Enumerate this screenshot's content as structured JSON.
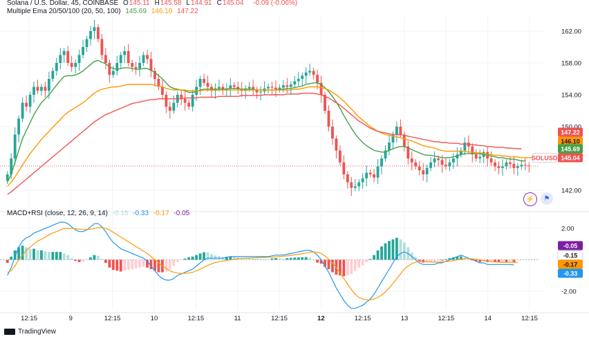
{
  "header": {
    "symbol_line": "Solana / U.S. Dollar, 45, COINBASE",
    "ohlc": [
      {
        "key": "O",
        "value": "145.11"
      },
      {
        "key": "H",
        "value": "145.58"
      },
      {
        "key": "L",
        "value": "144.91"
      },
      {
        "key": "C",
        "value": "145.04"
      }
    ],
    "change": "-0.09 (-0.06%)",
    "ema_line": "Multiple Ema 20/50/100 (20, 50, 100)",
    "ema_values": [
      "145.69",
      "146.10",
      "147.22"
    ],
    "macd_line": "MACD+RSI (close, 12, 26, 9, 14)",
    "macd_values": [
      "-0.15",
      "-0.33",
      "-0.17",
      "-0.05"
    ]
  },
  "colors": {
    "up": "#26a69a",
    "down": "#ef5350",
    "ema20": "#43a047",
    "ema50": "#ff9800",
    "ema100": "#ef5350",
    "macd": "#2196f3",
    "signal": "#ff9800",
    "rsi_tag": "#7b1fa2",
    "grid": "#f0f3fa",
    "text": "#131722"
  },
  "footer": {
    "brand": "TradingView"
  },
  "icons": [
    "alert-icon",
    "flag-icon"
  ],
  "chart_data": [
    {
      "type": "candlestick",
      "symbol": "SOLUSD",
      "y_axis": {
        "ticks": [
          "162.00",
          "158.00",
          "154.00",
          "150.00",
          "142.00"
        ],
        "range": [
          140,
          164
        ]
      },
      "x_axis": {
        "ticks": [
          "12:15",
          "9",
          "12:15",
          "10",
          "12:15",
          "11",
          "12:15",
          "12",
          "12:15",
          "13",
          "12:15",
          "14",
          "12:15"
        ]
      },
      "price_tags": [
        {
          "label": "147.22",
          "value": 147.22,
          "series": "ema100"
        },
        {
          "label": "146.10",
          "value": 146.1,
          "series": "ema50"
        },
        {
          "label": "145.69",
          "value": 145.69,
          "series": "ema20"
        },
        {
          "label": "SOLUSD",
          "value": 145.04,
          "series": "symbol"
        },
        {
          "label": "145.04",
          "value": 145.04,
          "series": "close"
        }
      ],
      "close_series": [
        144,
        146,
        149,
        151,
        153,
        152.5,
        154,
        155,
        154.5,
        155,
        154.5,
        156,
        157,
        158,
        159,
        159.5,
        158,
        157.5,
        158,
        159,
        160,
        161,
        162,
        162.5,
        161,
        159,
        158,
        156.5,
        157,
        158,
        159,
        159.5,
        158,
        157.5,
        157.3,
        158,
        159,
        158.5,
        157,
        156,
        155,
        154,
        152.5,
        152,
        153,
        154,
        153.5,
        153,
        152.5,
        154,
        155,
        156,
        155.5,
        155,
        154.5,
        154.8,
        155,
        154.6,
        154.8,
        155.2,
        155,
        154.7,
        154.5,
        154.8,
        155,
        154.6,
        154.3,
        154.4,
        154.8,
        155,
        154.9,
        154.7,
        154.9,
        155.2,
        155,
        155.3,
        155.7,
        156,
        156.4,
        156.8,
        157,
        156.5,
        155.5,
        154,
        152,
        150,
        148.5,
        147,
        145.5,
        144,
        143,
        142.3,
        142.5,
        143,
        143.5,
        144.2,
        144,
        143.6,
        145,
        146,
        147,
        148,
        149,
        150,
        149,
        147.5,
        146,
        145.5,
        145,
        144.5,
        144,
        144.8,
        145.5,
        146,
        145.8,
        145.2,
        145,
        145.5,
        146,
        146.5,
        147,
        148,
        147.5,
        146.5,
        146,
        146.2,
        146.8,
        146,
        145.5,
        145,
        144.8,
        145,
        145.5,
        145.3,
        144.8,
        145,
        145.2,
        145.1,
        145.04
      ],
      "ema20": [
        143,
        144,
        145.5,
        147,
        148.5,
        149.5,
        150.5,
        151.5,
        152.3,
        153,
        153.5,
        154,
        154.6,
        155.2,
        155.8,
        156.3,
        156.4,
        156.4,
        156.5,
        156.7,
        157,
        157.4,
        157.8,
        158.2,
        158.3,
        158.1,
        157.9,
        157.5,
        157.3,
        157.2,
        157.3,
        157.4,
        157.4,
        157.3,
        157.2,
        157.2,
        157.3,
        157.3,
        157.1,
        156.8,
        156.4,
        156,
        155.5,
        155,
        154.8,
        154.7,
        154.6,
        154.5,
        154.3,
        154.3,
        154.4,
        154.6,
        154.7,
        154.7,
        154.7,
        154.7,
        154.7,
        154.7,
        154.7,
        154.8,
        154.8,
        154.8,
        154.7,
        154.7,
        154.7,
        154.7,
        154.6,
        154.6,
        154.6,
        154.6,
        154.6,
        154.6,
        154.7,
        154.7,
        154.8,
        154.8,
        154.9,
        155,
        155.1,
        155.3,
        155.4,
        155.5,
        155.5,
        155.3,
        154.9,
        154.4,
        153.8,
        153.1,
        152.3,
        151.4,
        150.6,
        149.8,
        149.1,
        148.5,
        148,
        147.6,
        147.3,
        147,
        146.9,
        146.8,
        146.8,
        147,
        147.2,
        147.4,
        147.5,
        147.5,
        147.3,
        147.1,
        146.9,
        146.7,
        146.5,
        146.4,
        146.4,
        146.3,
        146.2,
        146.1,
        146.1,
        146.1,
        146.2,
        146.3,
        146.5,
        146.6,
        146.6,
        146.6,
        146.6,
        146.6,
        146.5,
        146.4,
        146.3,
        146.2,
        146.1,
        146.1,
        146,
        145.9,
        145.9,
        145.8,
        145.7,
        145.69
      ],
      "ema50": [
        142.5,
        143,
        143.7,
        144.4,
        145.2,
        145.9,
        146.6,
        147.2,
        147.8,
        148.4,
        148.9,
        149.4,
        149.9,
        150.4,
        150.9,
        151.4,
        151.8,
        152.1,
        152.4,
        152.7,
        153,
        153.4,
        153.8,
        154.2,
        154.5,
        154.7,
        154.8,
        154.9,
        155,
        155,
        155.1,
        155.2,
        155.3,
        155.3,
        155.3,
        155.3,
        155.3,
        155.3,
        155.3,
        155.2,
        155.1,
        155,
        154.8,
        154.7,
        154.6,
        154.6,
        154.6,
        154.6,
        154.5,
        154.5,
        154.5,
        154.5,
        154.6,
        154.6,
        154.6,
        154.6,
        154.6,
        154.6,
        154.6,
        154.6,
        154.6,
        154.6,
        154.6,
        154.6,
        154.6,
        154.6,
        154.6,
        154.6,
        154.6,
        154.6,
        154.6,
        154.6,
        154.6,
        154.6,
        154.6,
        154.6,
        154.7,
        154.7,
        154.8,
        154.9,
        155,
        155,
        155,
        154.9,
        154.8,
        154.6,
        154.3,
        154,
        153.6,
        153.2,
        152.7,
        152.2,
        151.7,
        151.2,
        150.8,
        150.4,
        150,
        149.7,
        149.4,
        149.2,
        149,
        148.9,
        148.8,
        148.7,
        148.6,
        148.5,
        148.3,
        148.2,
        148,
        147.8,
        147.6,
        147.5,
        147.4,
        147.3,
        147.1,
        147,
        146.9,
        146.9,
        146.9,
        146.9,
        146.9,
        146.9,
        146.8,
        146.8,
        146.7,
        146.7,
        146.6,
        146.5,
        146.5,
        146.4,
        146.4,
        146.3,
        146.3,
        146.2,
        146.2,
        146.2,
        146.1,
        146.1,
        146.1,
        146.1
      ],
      "ema100": [
        141.5,
        141.8,
        142.2,
        142.6,
        143,
        143.4,
        143.8,
        144.2,
        144.6,
        145,
        145.4,
        145.8,
        146.2,
        146.6,
        147,
        147.4,
        147.8,
        148.2,
        148.6,
        149,
        149.4,
        149.8,
        150.2,
        150.6,
        150.9,
        151.2,
        151.5,
        151.7,
        151.9,
        152.1,
        152.3,
        152.5,
        152.7,
        152.9,
        153,
        153.1,
        153.2,
        153.3,
        153.4,
        153.4,
        153.5,
        153.5,
        153.5,
        153.5,
        153.5,
        153.5,
        153.5,
        153.6,
        153.6,
        153.6,
        153.6,
        153.7,
        153.7,
        153.7,
        153.7,
        153.7,
        153.8,
        153.8,
        153.8,
        153.8,
        153.8,
        153.8,
        153.9,
        153.9,
        153.9,
        153.9,
        153.9,
        153.9,
        154,
        154,
        154,
        154,
        154,
        154,
        154.1,
        154.1,
        154.1,
        154.1,
        154.2,
        154.2,
        154.2,
        154.2,
        154.1,
        154,
        153.8,
        153.6,
        153.3,
        153,
        152.7,
        152.3,
        151.9,
        151.5,
        151.1,
        150.7,
        150.4,
        150.1,
        149.8,
        149.6,
        149.4,
        149.3,
        149.2,
        149.1,
        149,
        149,
        149,
        148.9,
        148.8,
        148.7,
        148.6,
        148.5,
        148.4,
        148.3,
        148.2,
        148.1,
        148.1,
        148,
        148,
        147.9,
        147.9,
        147.9,
        147.8,
        147.8,
        147.8,
        147.7,
        147.7,
        147.6,
        147.6,
        147.5,
        147.5,
        147.4,
        147.4,
        147.4,
        147.3,
        147.3,
        147.25,
        147.22,
        147.22
      ]
    },
    {
      "type": "macd",
      "y_axis": {
        "ticks": [
          "2.00",
          "-2.00"
        ],
        "range": [
          -3.2,
          2.8
        ]
      },
      "value_tags": [
        {
          "label": "-0.05",
          "value": -0.05,
          "series": "rsi"
        },
        {
          "label": "-0.15",
          "value": -0.15,
          "series": "histogram"
        },
        {
          "label": "-0.17",
          "value": -0.17,
          "series": "signal"
        },
        {
          "label": "-0.33",
          "value": -0.33,
          "series": "macd"
        }
      ],
      "macd": [
        -1,
        -0.5,
        0.2,
        0.8,
        1.2,
        1.4,
        1.5,
        1.7,
        1.8,
        1.9,
        2,
        2.1,
        2.2,
        2.3,
        2.4,
        2.4,
        2.3,
        2.1,
        1.9,
        1.8,
        1.8,
        1.9,
        2.1,
        2.3,
        2.3,
        2.1,
        1.8,
        1.4,
        1.1,
        0.9,
        0.7,
        0.6,
        0.5,
        0.4,
        0.3,
        0.2,
        0.1,
        -0.1,
        -0.4,
        -0.7,
        -1,
        -1.2,
        -1.3,
        -1.3,
        -1.2,
        -1,
        -0.9,
        -0.8,
        -0.7,
        -0.6,
        -0.4,
        -0.2,
        0,
        0.1,
        0.1,
        0.1,
        0.1,
        0.1,
        0.15,
        0.2,
        0.2,
        0.2,
        0.2,
        0.2,
        0.2,
        0.2,
        0.2,
        0.2,
        0.2,
        0.2,
        0.25,
        0.3,
        0.3,
        0.3,
        0.35,
        0.4,
        0.45,
        0.5,
        0.55,
        0.6,
        0.6,
        0.5,
        0.3,
        0,
        -0.4,
        -0.8,
        -1.3,
        -1.8,
        -2.2,
        -2.6,
        -2.9,
        -3.1,
        -3.1,
        -3,
        -2.9,
        -2.7,
        -2.5,
        -2.2,
        -1.8,
        -1.4,
        -1,
        -0.6,
        -0.2,
        0.2,
        0.4,
        0.5,
        0.4,
        0.2,
        0,
        -0.2,
        -0.3,
        -0.3,
        -0.3,
        -0.3,
        -0.2,
        -0.2,
        -0.1,
        0,
        0.1,
        0.2,
        0.3,
        0.2,
        0.1,
        0,
        -0.1,
        -0.2,
        -0.2,
        -0.3,
        -0.3,
        -0.3,
        -0.3,
        -0.3,
        -0.3,
        -0.3,
        -0.33
      ],
      "signal": [
        -0.8,
        -0.7,
        -0.4,
        0,
        0.3,
        0.6,
        0.8,
        1,
        1.2,
        1.3,
        1.45,
        1.6,
        1.7,
        1.8,
        1.9,
        2,
        2,
        2,
        1.98,
        1.95,
        1.93,
        1.92,
        1.95,
        2,
        2.05,
        2.05,
        2,
        1.9,
        1.75,
        1.6,
        1.45,
        1.3,
        1.15,
        1,
        0.85,
        0.7,
        0.55,
        0.4,
        0.2,
        0,
        -0.2,
        -0.4,
        -0.55,
        -0.7,
        -0.8,
        -0.85,
        -0.87,
        -0.87,
        -0.85,
        -0.8,
        -0.7,
        -0.6,
        -0.48,
        -0.36,
        -0.26,
        -0.18,
        -0.12,
        -0.08,
        -0.04,
        0,
        0.03,
        0.06,
        0.08,
        0.1,
        0.11,
        0.12,
        0.13,
        0.14,
        0.15,
        0.16,
        0.17,
        0.19,
        0.21,
        0.23,
        0.25,
        0.28,
        0.31,
        0.35,
        0.39,
        0.43,
        0.47,
        0.5,
        0.48,
        0.4,
        0.25,
        0.05,
        -0.2,
        -0.5,
        -0.85,
        -1.2,
        -1.55,
        -1.9,
        -2.2,
        -2.4,
        -2.5,
        -2.55,
        -2.55,
        -2.5,
        -2.4,
        -2.25,
        -2.05,
        -1.8,
        -1.5,
        -1.2,
        -0.9,
        -0.6,
        -0.4,
        -0.25,
        -0.15,
        -0.12,
        -0.12,
        -0.13,
        -0.14,
        -0.15,
        -0.15,
        -0.14,
        -0.12,
        -0.1,
        -0.06,
        0,
        0.05,
        0.08,
        0.08,
        0.06,
        0.03,
        0,
        -0.05,
        -0.09,
        -0.12,
        -0.14,
        -0.15,
        -0.16,
        -0.16,
        -0.17,
        -0.17,
        -0.17
      ],
      "histogram": [
        -0.2,
        0.2,
        0.6,
        0.8,
        0.9,
        0.8,
        0.7,
        0.7,
        0.6,
        0.6,
        0.55,
        0.5,
        0.5,
        0.5,
        0.5,
        0.4,
        0.3,
        0.1,
        -0.08,
        -0.15,
        -0.13,
        -0.02,
        0.15,
        0.3,
        0.25,
        0.05,
        -0.2,
        -0.5,
        -0.65,
        -0.7,
        -0.75,
        -0.7,
        -0.65,
        -0.6,
        -0.55,
        -0.5,
        -0.45,
        -0.5,
        -0.6,
        -0.7,
        -0.8,
        -0.8,
        -0.75,
        -0.6,
        -0.4,
        -0.15,
        -0.03,
        0.07,
        0.15,
        0.2,
        0.3,
        0.4,
        0.48,
        0.46,
        0.36,
        0.28,
        0.22,
        0.18,
        0.19,
        0.2,
        0.17,
        0.14,
        0.12,
        0.1,
        0.09,
        0.08,
        0.07,
        0.06,
        0.05,
        0.04,
        0.08,
        0.11,
        0.09,
        0.07,
        0.1,
        0.12,
        0.14,
        0.15,
        0.16,
        0.17,
        0.13,
        0,
        -0.18,
        -0.25,
        -0.45,
        -0.6,
        -0.8,
        -0.95,
        -1,
        -1.05,
        -1,
        -0.9,
        -0.7,
        -0.5,
        -0.35,
        -0.15,
        0.05,
        0.3,
        0.6,
        0.85,
        1.05,
        1.2,
        1.3,
        1.4,
        1.3,
        1.1,
        0.8,
        0.45,
        0.15,
        -0.08,
        -0.18,
        -0.17,
        -0.16,
        -0.15,
        -0.05,
        -0.05,
        0.04,
        0.1,
        0.16,
        0.2,
        0.22,
        0.12,
        0.04,
        -0.03,
        -0.1,
        -0.15,
        -0.11,
        -0.15,
        -0.14,
        -0.14,
        -0.14,
        -0.13,
        -0.14,
        -0.13,
        -0.15
      ]
    }
  ]
}
